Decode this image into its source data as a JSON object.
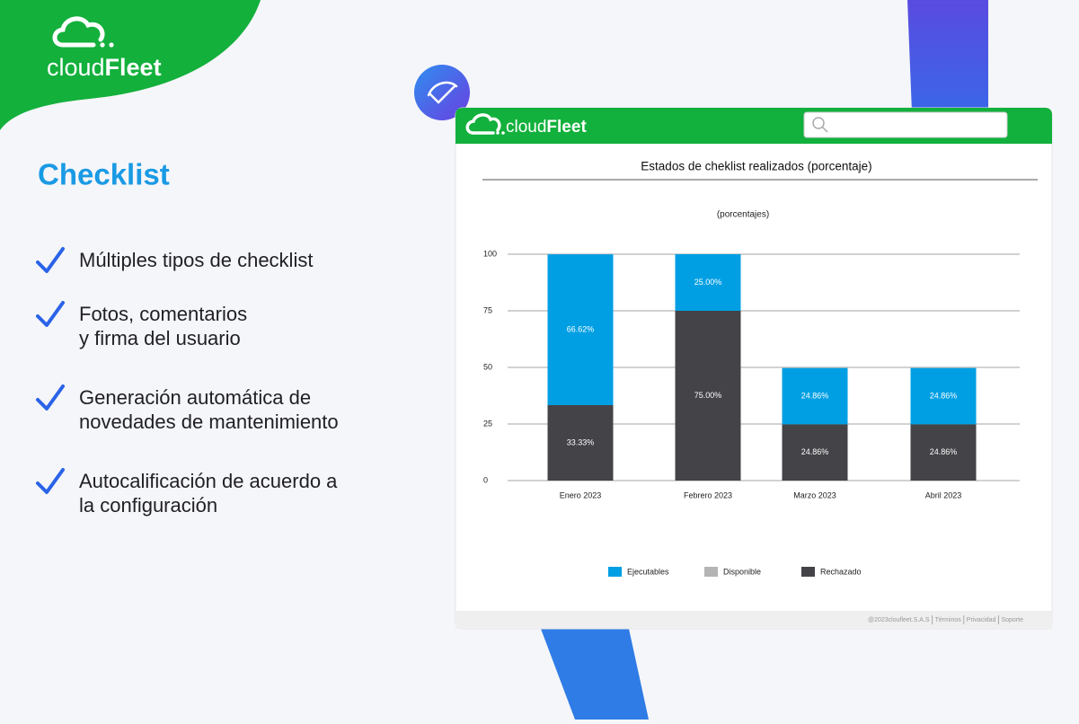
{
  "brand": {
    "light": "cloud",
    "bold": "Fleet"
  },
  "heading": "Checklist",
  "features": [
    [
      "Múltiples tipos de checklist"
    ],
    [
      "Fotos, comentarios",
      "y firma del usuario"
    ],
    [
      "Generación automática de",
      "novedades de mantenimiento"
    ],
    [
      "Autocalificación de acuerdo a",
      "la configuración"
    ]
  ],
  "app": {
    "brand": {
      "light": "cloud",
      "bold": "Fleet"
    },
    "footer": [
      "@2023cloufleet.S.A.S",
      "Términos",
      "Privacidad",
      "Soporte"
    ],
    "chart_data": {
      "type": "stacked-bar",
      "title": "Estados de cheklist realizados (porcentaje)",
      "subtitle": "(porcentajes)",
      "categories": [
        "Enero 2023",
        "Febrero 2023",
        "Marzo 2023",
        "Abril 2023"
      ],
      "series": [
        {
          "name": "Ejecutables",
          "color": "#009fe3",
          "values": [
            66.62,
            25,
            24.86,
            24.86
          ],
          "value_labels": [
            "66.62%",
            "25.00%",
            "24.86%",
            "24.86%"
          ]
        },
        {
          "name": "Disponible",
          "color": "#b4b4b4",
          "values": [
            0,
            0,
            0,
            0
          ]
        },
        {
          "name": "Rechazado",
          "color": "#434348",
          "values": [
            33.33,
            75,
            24.86,
            24.86
          ],
          "value_labels": [
            "33.33%",
            "75.00%",
            "24.86%",
            "24.86%"
          ]
        }
      ],
      "ylim": [
        0,
        100
      ],
      "yticks": [
        0,
        25,
        50,
        75,
        100
      ],
      "grid": true,
      "legend": "bottom"
    }
  }
}
